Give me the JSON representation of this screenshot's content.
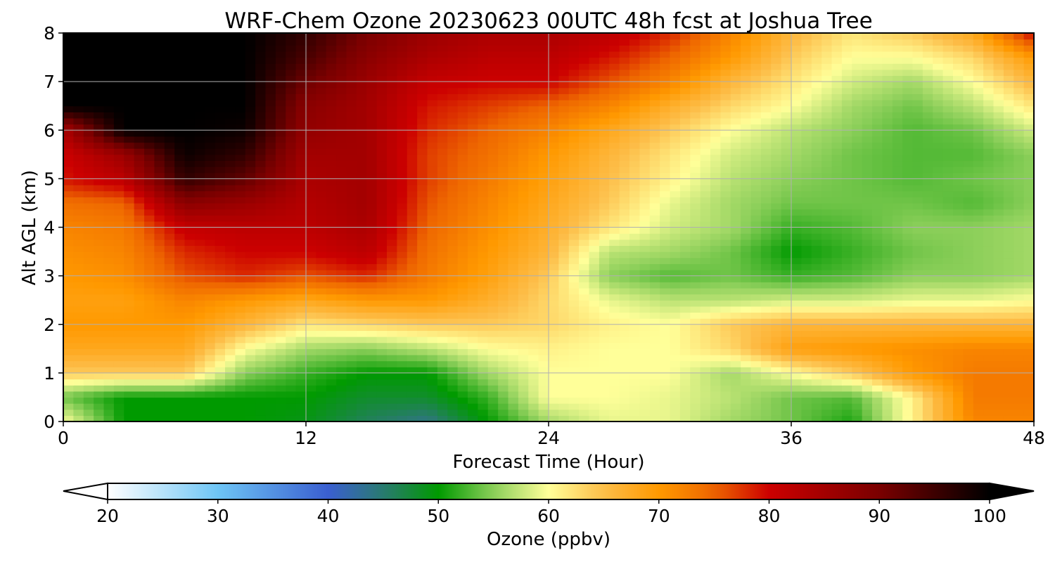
{
  "chart_data": {
    "type": "heatmap",
    "title": "WRF-Chem Ozone  20230623 00UTC 48h fcst at Joshua Tree",
    "xlabel": "Forecast Time (Hour)",
    "ylabel": "Alt AGL (km)",
    "xlim": [
      0,
      48
    ],
    "ylim": [
      0,
      8
    ],
    "x_ticks": [
      0,
      12,
      24,
      36,
      48
    ],
    "y_ticks": [
      0,
      1,
      2,
      3,
      4,
      5,
      6,
      7,
      8
    ],
    "grid": true,
    "x": [
      0,
      3,
      6,
      9,
      12,
      15,
      18,
      21,
      24,
      27,
      30,
      33,
      36,
      39,
      42,
      45,
      48
    ],
    "y": [
      0,
      0.5,
      1,
      1.5,
      2,
      2.5,
      3,
      3.5,
      4,
      4.5,
      5,
      5.5,
      6,
      6.5,
      7,
      7.5,
      8
    ],
    "values": [
      [
        60,
        50,
        50,
        50,
        49,
        46,
        44,
        50,
        56,
        59,
        59,
        56,
        54,
        51,
        61,
        72,
        72
      ],
      [
        54,
        50,
        50,
        50,
        50,
        48,
        48,
        52,
        60,
        60,
        59,
        57,
        54,
        53,
        61,
        73,
        73
      ],
      [
        64,
        64,
        64,
        55,
        52,
        50,
        50,
        56,
        60,
        60,
        60,
        56,
        60,
        64,
        70,
        73,
        73
      ],
      [
        68,
        68,
        68,
        60,
        56,
        55,
        57,
        60,
        61,
        60,
        60,
        63,
        69,
        70,
        71,
        72,
        72
      ],
      [
        70,
        70,
        70,
        66,
        62,
        63,
        64,
        64,
        63,
        61,
        60,
        64,
        66,
        66,
        66,
        66,
        66
      ],
      [
        69,
        69,
        72,
        70,
        68,
        70,
        70,
        67,
        63,
        59,
        57,
        57,
        58,
        58,
        59,
        59,
        60
      ],
      [
        70,
        71,
        76,
        78,
        76,
        78,
        73,
        69,
        64,
        55,
        53,
        54,
        52,
        53,
        55,
        55,
        56
      ],
      [
        71,
        72,
        78,
        80,
        80,
        82,
        74,
        70,
        66,
        57,
        56,
        54,
        50,
        52,
        54,
        55,
        56
      ],
      [
        72,
        73,
        81,
        82,
        82,
        84,
        75,
        71,
        67,
        62,
        58,
        56,
        52,
        53,
        55,
        55,
        56
      ],
      [
        74,
        75,
        88,
        86,
        83,
        85,
        76,
        72,
        68,
        64,
        59,
        56,
        54,
        54,
        54,
        53,
        55
      ],
      [
        79,
        82,
        96,
        92,
        84,
        85,
        77,
        73,
        69,
        65,
        61,
        57,
        55,
        54,
        53,
        54,
        55
      ],
      [
        80,
        86,
        99,
        96,
        85,
        85,
        77,
        74,
        70,
        66,
        62,
        58,
        56,
        54,
        53,
        53,
        55
      ],
      [
        84,
        100,
        100,
        99,
        87,
        85,
        78,
        75,
        72,
        68,
        64,
        60,
        57,
        55,
        53,
        54,
        58
      ],
      [
        100,
        100,
        100,
        100,
        88,
        85,
        79,
        77,
        75,
        72,
        67,
        63,
        60,
        56,
        54,
        57,
        62
      ],
      [
        100,
        100,
        100,
        100,
        91,
        86,
        81,
        80,
        80,
        76,
        72,
        66,
        62,
        58,
        56,
        60,
        66
      ],
      [
        100,
        100,
        100,
        100,
        94,
        88,
        84,
        82,
        82,
        79,
        75,
        70,
        64,
        60,
        60,
        63,
        70
      ],
      [
        100,
        100,
        100,
        100,
        96,
        90,
        86,
        84,
        84,
        82,
        78,
        72,
        66,
        62,
        64,
        68,
        80
      ]
    ],
    "colorbar": {
      "label": "Ozone  (ppbv)",
      "range": [
        20,
        100
      ],
      "ticks": [
        20,
        30,
        40,
        50,
        60,
        70,
        80,
        90,
        100
      ],
      "extend": "both",
      "orientation": "horizontal",
      "placement": "bottom"
    },
    "colormap_stops": [
      {
        "v": 20,
        "c": "#ffffff"
      },
      {
        "v": 30,
        "c": "#6ec5f5"
      },
      {
        "v": 40,
        "c": "#3a5fd0"
      },
      {
        "v": 45,
        "c": "#2a7a70"
      },
      {
        "v": 50,
        "c": "#009a00"
      },
      {
        "v": 55,
        "c": "#8ccf5a"
      },
      {
        "v": 60,
        "c": "#ffff99"
      },
      {
        "v": 65,
        "c": "#fdbd48"
      },
      {
        "v": 70,
        "c": "#ff9900"
      },
      {
        "v": 75,
        "c": "#ee6600"
      },
      {
        "v": 80,
        "c": "#cc0000"
      },
      {
        "v": 90,
        "c": "#7a0000"
      },
      {
        "v": 100,
        "c": "#000000"
      }
    ]
  }
}
